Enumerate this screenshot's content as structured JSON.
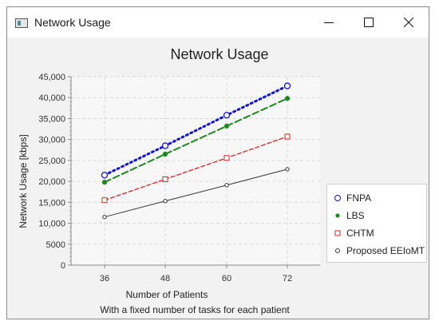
{
  "window": {
    "title": "Network Usage",
    "controls": {
      "minimize_icon": "minimize-icon",
      "maximize_icon": "maximize-icon",
      "close_icon": "close-icon"
    }
  },
  "chart_data": {
    "type": "line",
    "title": "Network Usage",
    "xlabel": "Number of Patients",
    "subtitle": "With a fixed number of tasks for each patient",
    "ylabel": "Network Usage [kbps]",
    "categories": [
      "36",
      "48",
      "60",
      "72"
    ],
    "ylim": [
      0,
      45000
    ],
    "yticks": [
      0,
      5000,
      10000,
      15000,
      20000,
      25000,
      30000,
      35000,
      40000,
      45000
    ],
    "ytick_labels": [
      "0",
      "5000",
      "10,000",
      "15,000",
      "20,000",
      "25,000",
      "30,000",
      "35,000",
      "40,000",
      "45,000"
    ],
    "grid": true,
    "legend_position": "right",
    "series": [
      {
        "name": "FNPA",
        "values": [
          21500,
          28500,
          35800,
          42800
        ],
        "color": "#1010e0",
        "style": "dotted",
        "marker": "open-circle"
      },
      {
        "name": "LBS",
        "values": [
          19800,
          26500,
          33200,
          39800
        ],
        "color": "#1a8a1a",
        "style": "dashed",
        "marker": "filled-circle"
      },
      {
        "name": "CHTM",
        "values": [
          15500,
          20500,
          25600,
          30700
        ],
        "color": "#e02020",
        "style": "short-dashed",
        "marker": "open-square"
      },
      {
        "name": "Proposed EEIoMT",
        "values": [
          11500,
          15300,
          19100,
          22900
        ],
        "color": "#333333",
        "style": "solid",
        "marker": "small-open-circle"
      }
    ]
  }
}
